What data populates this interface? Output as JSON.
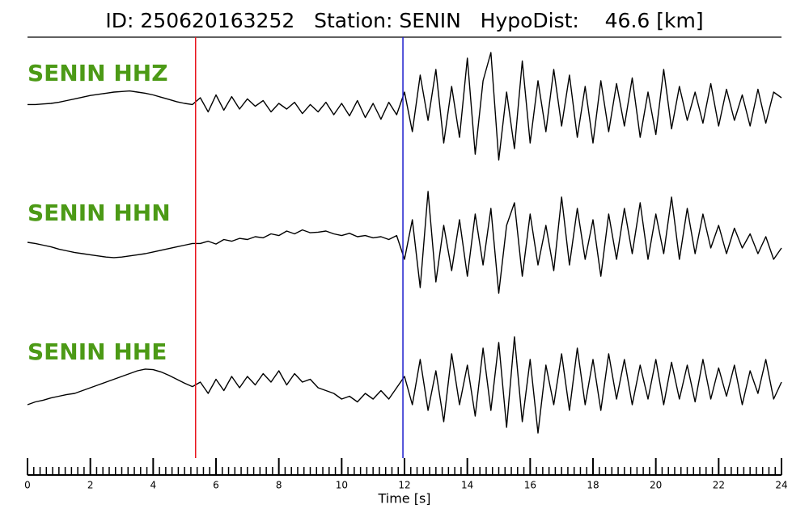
{
  "chart_data": {
    "type": "seismogram",
    "title": "ID: 250620163252   Station: SENIN   HypoDist:    46.6 [km]",
    "xlabel": "Time [s]",
    "xlim": [
      0,
      24
    ],
    "xticks": [
      0,
      2,
      4,
      6,
      8,
      10,
      12,
      14,
      16,
      18,
      20,
      22,
      24
    ],
    "minor_tick_step": 0.2,
    "ylim": [
      -1,
      1
    ],
    "label_color": "#4c9a16",
    "picks": [
      {
        "color": "#e8141c",
        "x": 5.35
      },
      {
        "color": "#1c1ccc",
        "x": 11.95
      }
    ],
    "x": [
      0,
      0.25,
      0.5,
      0.75,
      1,
      1.25,
      1.5,
      1.75,
      2,
      2.25,
      2.5,
      2.75,
      3,
      3.25,
      3.5,
      3.75,
      4,
      4.25,
      4.5,
      4.75,
      5,
      5.25,
      5.5,
      5.75,
      6,
      6.25,
      6.5,
      6.75,
      7,
      7.25,
      7.5,
      7.75,
      8,
      8.25,
      8.5,
      8.75,
      9,
      9.25,
      9.5,
      9.75,
      10,
      10.25,
      10.5,
      10.75,
      11,
      11.25,
      11.5,
      11.75,
      12,
      12.25,
      12.5,
      12.75,
      13,
      13.25,
      13.5,
      13.75,
      14,
      14.25,
      14.5,
      14.75,
      15,
      15.25,
      15.5,
      15.75,
      16,
      16.25,
      16.5,
      16.75,
      17,
      17.25,
      17.5,
      17.75,
      18,
      18.25,
      18.5,
      18.75,
      19,
      19.25,
      19.5,
      19.75,
      20,
      20.25,
      20.5,
      20.75,
      21,
      21.25,
      21.5,
      21.75,
      22,
      22.25,
      22.5,
      22.75,
      23,
      23.25,
      23.5,
      23.75,
      24
    ],
    "series": [
      {
        "name": "SENIN HHZ",
        "color": "#000000",
        "values": [
          0.08,
          0.08,
          0.09,
          0.1,
          0.12,
          0.15,
          0.18,
          0.21,
          0.24,
          0.26,
          0.28,
          0.3,
          0.31,
          0.32,
          0.3,
          0.28,
          0.25,
          0.21,
          0.17,
          0.13,
          0.1,
          0.08,
          0.2,
          -0.05,
          0.25,
          -0.02,
          0.22,
          0.0,
          0.18,
          0.05,
          0.15,
          -0.05,
          0.1,
          0.0,
          0.12,
          -0.08,
          0.08,
          -0.05,
          0.12,
          -0.1,
          0.1,
          -0.12,
          0.15,
          -0.15,
          0.1,
          -0.18,
          0.12,
          -0.1,
          0.3,
          -0.4,
          0.6,
          -0.2,
          0.7,
          -0.6,
          0.4,
          -0.5,
          0.9,
          -0.8,
          0.5,
          1.0,
          -0.9,
          0.3,
          -0.7,
          0.85,
          -0.6,
          0.5,
          -0.4,
          0.7,
          -0.3,
          0.6,
          -0.5,
          0.4,
          -0.6,
          0.5,
          -0.4,
          0.45,
          -0.3,
          0.55,
          -0.5,
          0.3,
          -0.45,
          0.7,
          -0.35,
          0.4,
          -0.2,
          0.3,
          -0.25,
          0.45,
          -0.3,
          0.35,
          -0.2,
          0.25,
          -0.3,
          0.35,
          -0.25,
          0.3,
          0.2
        ]
      },
      {
        "name": "SENIN HHN",
        "color": "#000000",
        "values": [
          0.0,
          -0.02,
          -0.05,
          -0.08,
          -0.12,
          -0.15,
          -0.18,
          -0.2,
          -0.22,
          -0.24,
          -0.26,
          -0.27,
          -0.26,
          -0.24,
          -0.22,
          -0.2,
          -0.17,
          -0.14,
          -0.11,
          -0.08,
          -0.05,
          -0.02,
          -0.02,
          0.02,
          -0.03,
          0.05,
          0.02,
          0.07,
          0.05,
          0.1,
          0.08,
          0.15,
          0.12,
          0.2,
          0.15,
          0.22,
          0.17,
          0.18,
          0.2,
          0.15,
          0.12,
          0.16,
          0.1,
          0.12,
          0.08,
          0.1,
          0.05,
          0.12,
          -0.3,
          0.4,
          -0.8,
          0.9,
          -0.7,
          0.3,
          -0.5,
          0.4,
          -0.6,
          0.5,
          -0.4,
          0.6,
          -0.9,
          0.3,
          0.7,
          -0.6,
          0.5,
          -0.4,
          0.3,
          -0.5,
          0.8,
          -0.4,
          0.6,
          -0.3,
          0.4,
          -0.6,
          0.5,
          -0.3,
          0.6,
          -0.2,
          0.7,
          -0.3,
          0.5,
          -0.2,
          0.8,
          -0.3,
          0.6,
          -0.2,
          0.5,
          -0.1,
          0.3,
          -0.2,
          0.25,
          -0.1,
          0.15,
          -0.2,
          0.1,
          -0.3,
          -0.1
        ]
      },
      {
        "name": "SENIN HHE",
        "color": "#000000",
        "values": [
          -0.3,
          -0.25,
          -0.22,
          -0.18,
          -0.15,
          -0.12,
          -0.1,
          -0.05,
          0.0,
          0.05,
          0.1,
          0.15,
          0.2,
          0.25,
          0.3,
          0.33,
          0.32,
          0.28,
          0.22,
          0.15,
          0.08,
          0.02,
          0.1,
          -0.1,
          0.15,
          -0.05,
          0.2,
          0.0,
          0.2,
          0.05,
          0.25,
          0.1,
          0.3,
          0.05,
          0.25,
          0.1,
          0.15,
          0.0,
          -0.05,
          -0.1,
          -0.2,
          -0.15,
          -0.25,
          -0.1,
          -0.2,
          -0.05,
          -0.2,
          0.0,
          0.2,
          -0.3,
          0.5,
          -0.4,
          0.3,
          -0.6,
          0.6,
          -0.3,
          0.4,
          -0.5,
          0.7,
          -0.4,
          0.8,
          -0.7,
          0.9,
          -0.6,
          0.5,
          -0.8,
          0.4,
          -0.3,
          0.6,
          -0.4,
          0.7,
          -0.3,
          0.5,
          -0.4,
          0.6,
          -0.2,
          0.5,
          -0.3,
          0.4,
          -0.2,
          0.5,
          -0.3,
          0.45,
          -0.2,
          0.4,
          -0.25,
          0.5,
          -0.2,
          0.35,
          -0.15,
          0.4,
          -0.3,
          0.3,
          -0.1,
          0.5,
          -0.2,
          0.1
        ]
      }
    ]
  }
}
